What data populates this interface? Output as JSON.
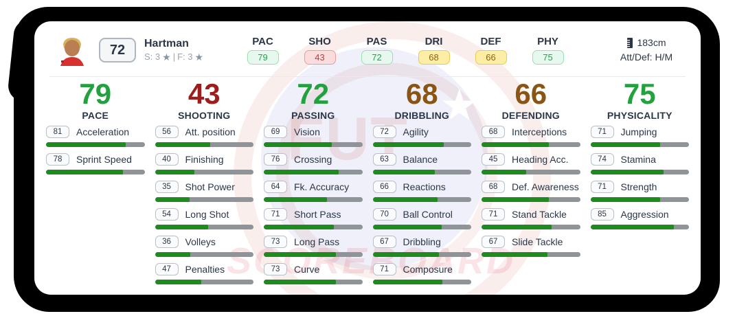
{
  "header": {
    "rating": "72",
    "name": "Hartman",
    "skill_label": "S: 3",
    "separator": "|",
    "foot_label": "F: 3",
    "height": "183cm",
    "att_def": "Att/Def: H/M"
  },
  "icons": {
    "star": "★",
    "ruler": "ruler-icon",
    "avatar": "player-photo"
  },
  "top_stats": [
    {
      "label": "PAC",
      "value": "79",
      "tone": "green"
    },
    {
      "label": "SHO",
      "value": "43",
      "tone": "red"
    },
    {
      "label": "PAS",
      "value": "72",
      "tone": "green"
    },
    {
      "label": "DRI",
      "value": "68",
      "tone": "yellow"
    },
    {
      "label": "DEF",
      "value": "66",
      "tone": "yellow"
    },
    {
      "label": "PHY",
      "value": "75",
      "tone": "green"
    }
  ],
  "columns": [
    {
      "total": "79",
      "tone": "green",
      "label": "PACE",
      "stats": [
        {
          "value": 81,
          "label": "Acceleration"
        },
        {
          "value": 78,
          "label": "Sprint Speed"
        }
      ]
    },
    {
      "total": "43",
      "tone": "red",
      "label": "SHOOTING",
      "stats": [
        {
          "value": 56,
          "label": "Att. position"
        },
        {
          "value": 40,
          "label": "Finishing"
        },
        {
          "value": 35,
          "label": "Shot Power"
        },
        {
          "value": 54,
          "label": "Long Shot"
        },
        {
          "value": 36,
          "label": "Volleys"
        },
        {
          "value": 47,
          "label": "Penalties"
        }
      ]
    },
    {
      "total": "72",
      "tone": "green",
      "label": "PASSING",
      "stats": [
        {
          "value": 69,
          "label": "Vision"
        },
        {
          "value": 76,
          "label": "Crossing"
        },
        {
          "value": 64,
          "label": "Fk. Accuracy"
        },
        {
          "value": 71,
          "label": "Short Pass"
        },
        {
          "value": 73,
          "label": "Long Pass"
        },
        {
          "value": 73,
          "label": "Curve"
        }
      ]
    },
    {
      "total": "68",
      "tone": "brown",
      "label": "DRIBBLING",
      "stats": [
        {
          "value": 72,
          "label": "Agility"
        },
        {
          "value": 63,
          "label": "Balance"
        },
        {
          "value": 66,
          "label": "Reactions"
        },
        {
          "value": 70,
          "label": "Ball Control"
        },
        {
          "value": 67,
          "label": "Dribbling"
        },
        {
          "value": 71,
          "label": "Composure"
        }
      ]
    },
    {
      "total": "66",
      "tone": "brown",
      "label": "DEFENDING",
      "stats": [
        {
          "value": 68,
          "label": "Interceptions"
        },
        {
          "value": 45,
          "label": "Heading Acc."
        },
        {
          "value": 68,
          "label": "Def. Awareness"
        },
        {
          "value": 71,
          "label": "Stand Tackle"
        },
        {
          "value": 67,
          "label": "Slide Tackle"
        }
      ]
    },
    {
      "total": "75",
      "tone": "green",
      "label": "PHYSICALITY",
      "stats": [
        {
          "value": 71,
          "label": "Jumping"
        },
        {
          "value": 74,
          "label": "Stamina"
        },
        {
          "value": 71,
          "label": "Strength"
        },
        {
          "value": 85,
          "label": "Aggression"
        }
      ]
    }
  ],
  "watermark": {
    "brand": "FUT",
    "text": "SCOREBOARD"
  },
  "colors": {
    "stat_green": "#22a13e",
    "stat_red": "#9b1d1d",
    "stat_brown": "#8a5512",
    "bar_fill": "#1e8a1f",
    "bar_track": "#8f9499",
    "badge_green_bg": "#e7f9ee",
    "badge_red_bg": "#fbdcdc",
    "badge_yellow_bg": "#fdeea6"
  }
}
